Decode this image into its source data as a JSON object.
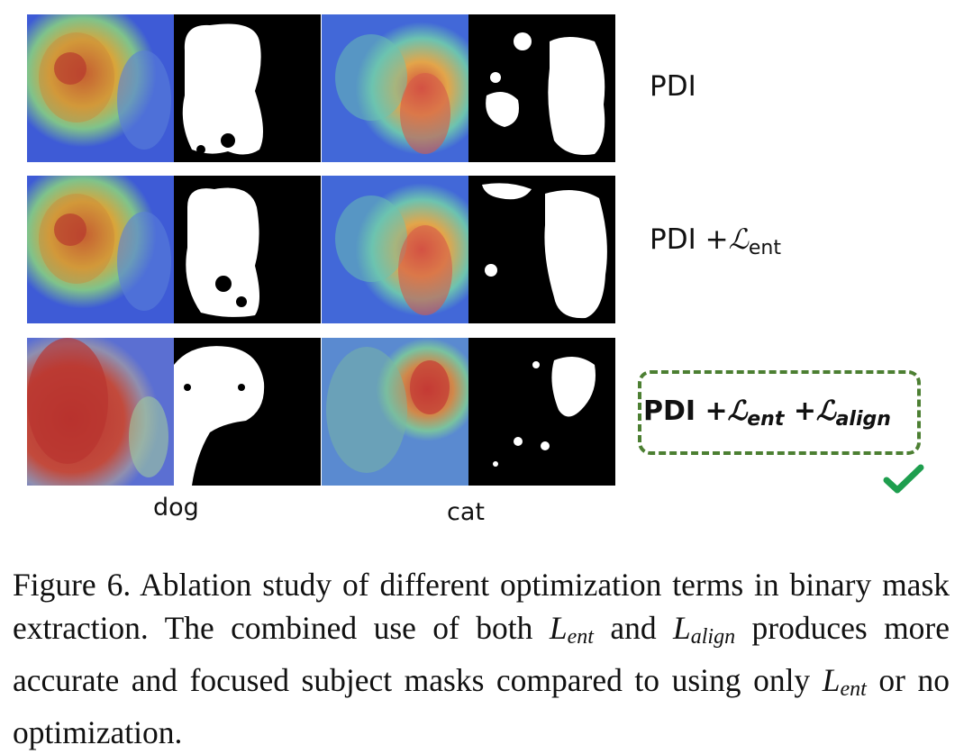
{
  "figure": {
    "rows": [
      {
        "label_base": "PDI",
        "terms": []
      },
      {
        "label_base": "PDI",
        "terms": [
          {
            "op": "+",
            "symbol": "ℒ",
            "sub": "ent"
          }
        ]
      },
      {
        "label_base": "PDI",
        "terms": [
          {
            "op": "+",
            "symbol": "ℒ",
            "sub": "ent"
          },
          {
            "op": "+",
            "symbol": "ℒ",
            "sub": "align"
          }
        ],
        "highlighted": true
      }
    ],
    "columns": {
      "dog": "dog",
      "cat": "cat"
    },
    "panels": {
      "heatmap_dog": "heatmap-dog",
      "mask_dog": "mask-dog",
      "heatmap_cat": "heatmap-cat",
      "mask_cat": "mask-cat"
    },
    "accent_color": "#4c7f32",
    "check_color": "#1e9e4e"
  },
  "caption": {
    "prefix": "Figure 6.",
    "text_1": " Ablation study of different optimization terms in binary mask extraction. The combined use of both ",
    "L1": "L",
    "L1_sub": "ent",
    "text_2": " and ",
    "L2": "L",
    "L2_sub": "align",
    "text_3": " produces more accurate and focused subject masks compared to using only ",
    "L3": "L",
    "L3_sub": "ent",
    "text_4": " or no optimization."
  }
}
